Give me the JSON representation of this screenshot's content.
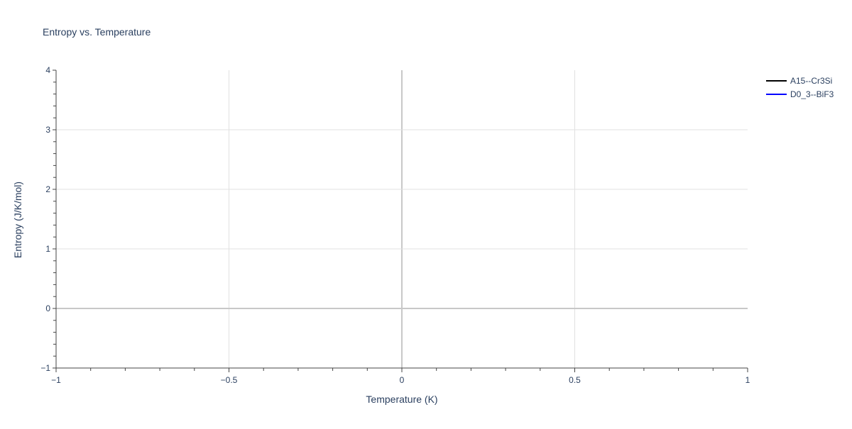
{
  "chart_data": {
    "type": "line",
    "title": "Entropy vs. Temperature",
    "xlabel": "Temperature (K)",
    "ylabel": "Entropy (J/K/mol)",
    "xlim": [
      -1,
      1
    ],
    "ylim": [
      -1,
      4
    ],
    "xticks": [
      -1,
      -0.5,
      0,
      0.5,
      1
    ],
    "xtick_labels": [
      "−1",
      "−0.5",
      "0",
      "0.5",
      "1"
    ],
    "yticks": [
      -1,
      0,
      1,
      2,
      3,
      4
    ],
    "ytick_labels": [
      "−1",
      "0",
      "1",
      "2",
      "3",
      "4"
    ],
    "grid": true,
    "legend_position": "top-right",
    "series": [
      {
        "name": "A15--Cr3Si",
        "color": "#000000",
        "x": [],
        "y": []
      },
      {
        "name": "D0_3--BiF3",
        "color": "#0000ff",
        "x": [],
        "y": []
      }
    ]
  }
}
